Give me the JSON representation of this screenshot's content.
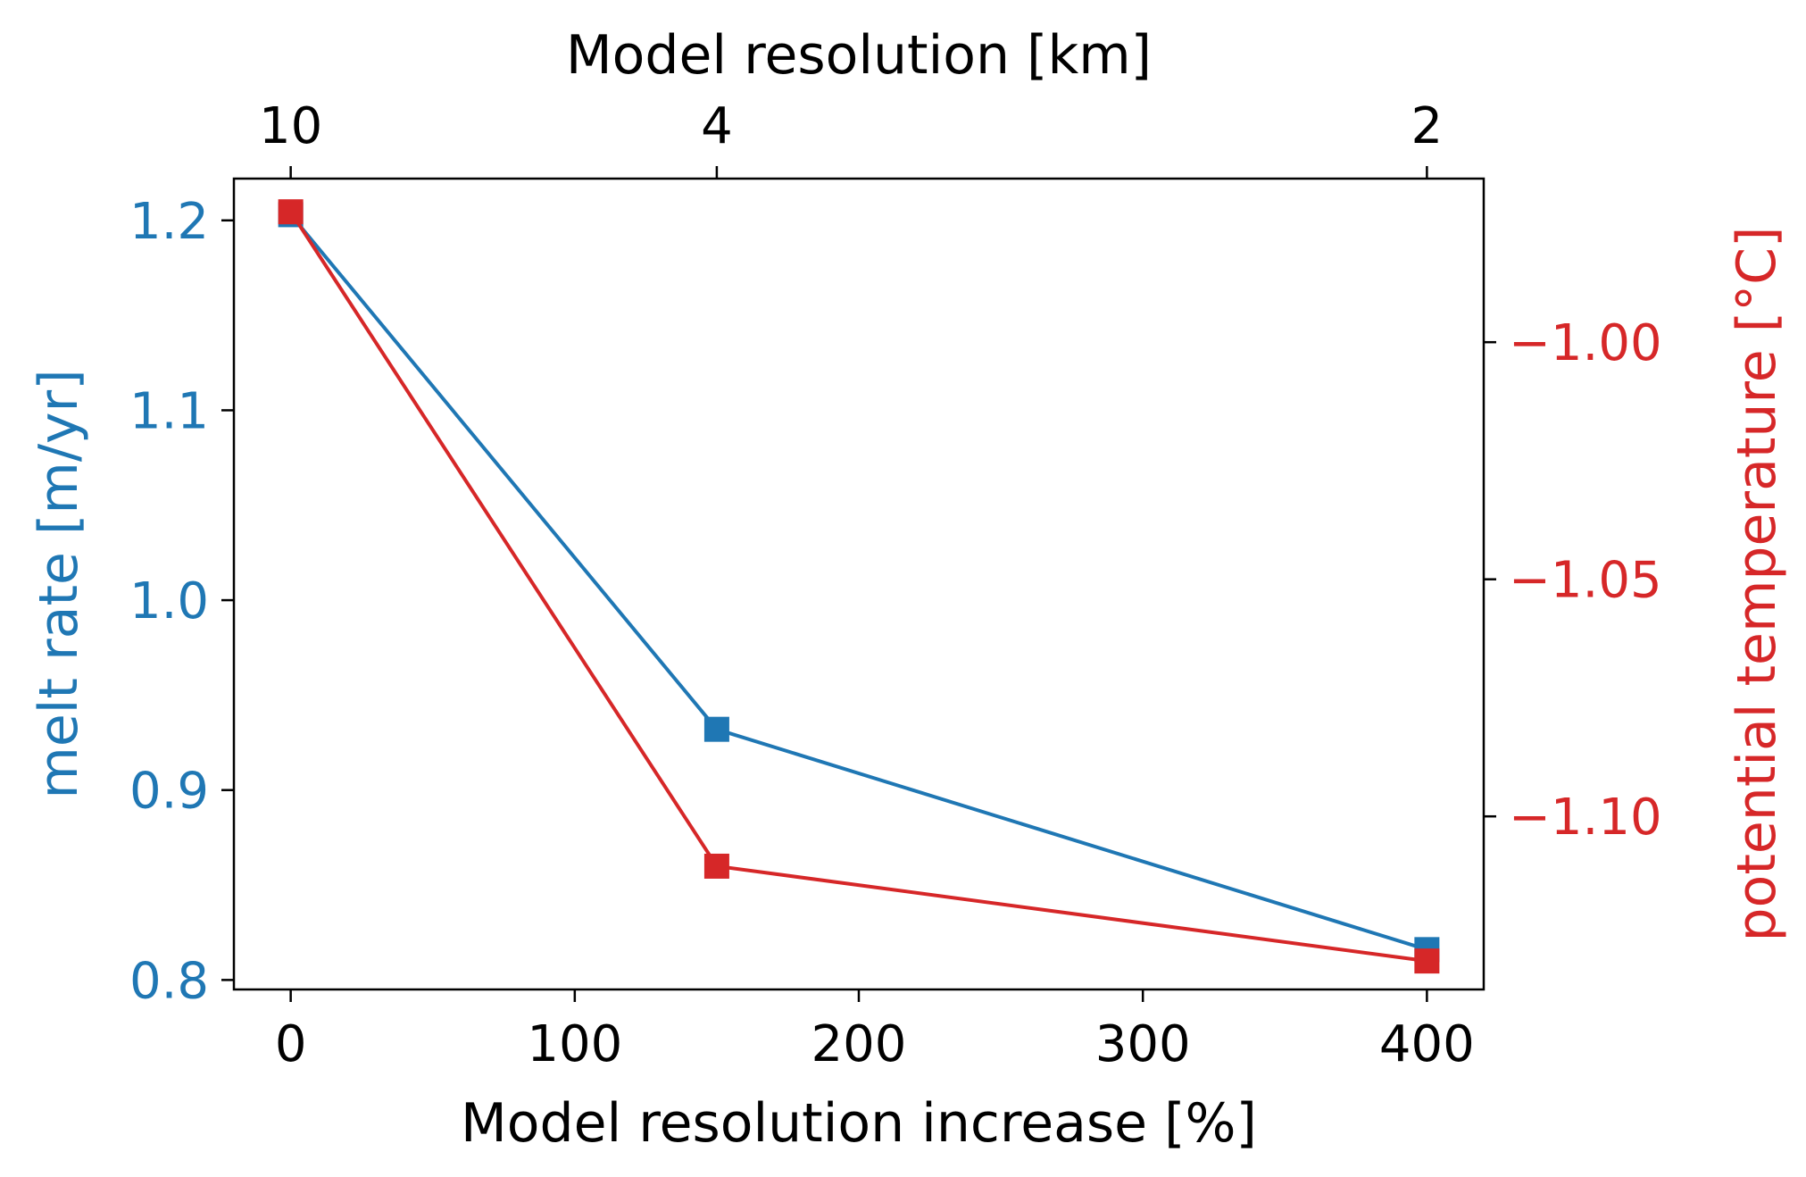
{
  "chart_data": {
    "type": "line",
    "title": "",
    "x": [
      0,
      150,
      400
    ],
    "xlabel": "Model resolution increase [%]",
    "xlim": [
      -20,
      420
    ],
    "xticks": [
      0,
      100,
      200,
      300,
      400
    ],
    "xtick_labels": [
      "0",
      "100",
      "200",
      "300",
      "400"
    ],
    "top_axis": {
      "label": "Model resolution [km]",
      "ticks_at_x": [
        0,
        150,
        400
      ],
      "tick_labels": [
        "10",
        "4",
        "2"
      ]
    },
    "left_axis": {
      "label": "melt rate [m/yr]",
      "color": "#1f77b4",
      "ylim": [
        0.795,
        1.222
      ],
      "ticks": [
        0.8,
        0.9,
        1.0,
        1.1,
        1.2
      ],
      "tick_labels": [
        "0.8",
        "0.9",
        "1.0",
        "1.1",
        "1.2"
      ]
    },
    "right_axis": {
      "label": "potential temperature [°C]",
      "color": "#d62728",
      "ylim": [
        -1.1365,
        -0.9655
      ],
      "ticks": [
        -1.0,
        -1.05,
        -1.1
      ],
      "tick_labels": [
        "−1.00",
        "−1.05",
        "−1.10"
      ]
    },
    "series": [
      {
        "axis": "left",
        "color": "#1f77b4",
        "marker": "square",
        "values": [
          1.203,
          0.932,
          0.816
        ]
      },
      {
        "axis": "right",
        "color": "#d62728",
        "marker": "square",
        "values": [
          -0.9725,
          -1.1105,
          -1.1305
        ]
      }
    ],
    "legend": "none",
    "grid": false
  }
}
